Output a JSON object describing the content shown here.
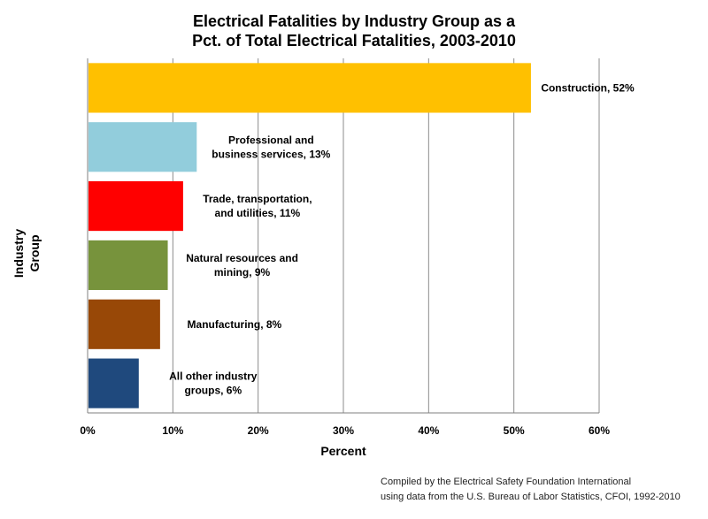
{
  "chart_data": {
    "type": "bar",
    "orientation": "horizontal",
    "title_lines": [
      "Electrical Fatalities by Industry Group as a",
      "Pct. of Total Electrical Fatalities, 2003-2010"
    ],
    "xlabel": "Percent",
    "ylabel_lines": [
      "Industry",
      "Group"
    ],
    "xlim": [
      0,
      60
    ],
    "x_ticks": [
      "0%",
      "10%",
      "20%",
      "30%",
      "40%",
      "50%",
      "60%"
    ],
    "grid": "vertical",
    "categories": [
      "Construction",
      "Professional and business services",
      "Trade, transportation, and utilities",
      "Natural resources and mining",
      "Manufacturing",
      "All other industry groups"
    ],
    "values": [
      52,
      13,
      11,
      9,
      8,
      6
    ],
    "bar_value_estimates": [
      52,
      12.8,
      11.2,
      9.4,
      8.5,
      6.0
    ],
    "colors": [
      "#FFC000",
      "#92CDDC",
      "#FF0000",
      "#77933C",
      "#984807",
      "#1F497D"
    ],
    "data_labels": [
      [
        "Construction, 52%"
      ],
      [
        "Professional and",
        "business services, 13%"
      ],
      [
        "Trade, transportation,",
        "and utilities, 11%"
      ],
      [
        "Natural resources and",
        "mining, 9%"
      ],
      [
        "Manufacturing, 8%"
      ],
      [
        "All other industry",
        "groups, 6%"
      ]
    ]
  },
  "source_lines": [
    "Compiled by the Electrical Safety Foundation International",
    "using data from the U.S. Bureau of Labor Statistics, CFOI, 1992-2010"
  ]
}
